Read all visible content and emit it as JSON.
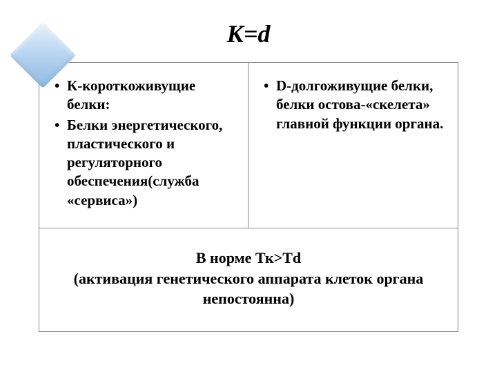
{
  "title": {
    "text": "К=d",
    "fontsize": 36,
    "color": "#000000"
  },
  "diamond": {
    "fill_gradient_start": "#e8f1fb",
    "fill_gradient_mid": "#b8d4f0",
    "fill_gradient_end": "#8fb8e0"
  },
  "table": {
    "border_color": "#888888",
    "left_cell": {
      "items": [
        "К-короткоживущие белки:",
        "Белки энергетического, пластического и регуляторного обеспечения(служба «сервиса»)"
      ],
      "fontsize": 21
    },
    "right_cell": {
      "items": [
        "D-долгоживущие белки, белки остова-«скелета» главной функции органа."
      ],
      "fontsize": 21
    },
    "bottom_cell": {
      "line1": "В норме Тк>Тd",
      "line2": "(активация генетического аппарата клеток органа непостоянна)",
      "fontsize": 22
    }
  },
  "background_color": "#ffffff"
}
